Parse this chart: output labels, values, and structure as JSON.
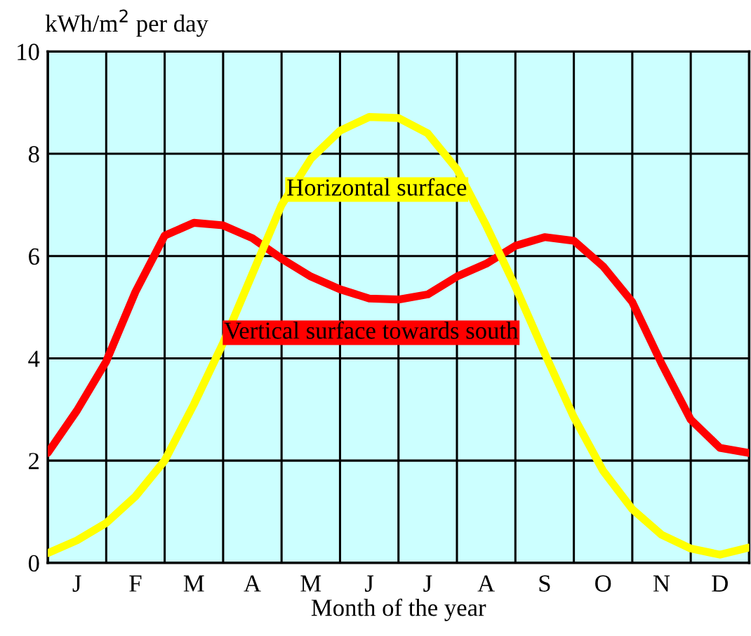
{
  "chart_data": {
    "type": "line",
    "xlabel": "Month of the year",
    "ylabel": "kWh/m$^{2}$ per day",
    "ylim": [
      0,
      10
    ],
    "yticks": [
      0,
      2,
      4,
      6,
      8,
      10
    ],
    "categories": [
      null,
      "J",
      null,
      "F",
      null,
      "M",
      null,
      "A",
      null,
      "M",
      null,
      "J",
      null,
      "J",
      null,
      "A",
      null,
      "S",
      null,
      "O",
      null,
      "N",
      null,
      "D",
      null
    ],
    "grid": true,
    "legend": false,
    "marker": "none",
    "line_style": "solid",
    "series": [
      {
        "name": "Vertical surface towards south",
        "color": "#ff0000",
        "values": [
          2.15,
          2.98,
          3.94,
          5.3,
          6.4,
          6.65,
          6.6,
          6.35,
          5.95,
          5.6,
          5.35,
          5.17,
          5.15,
          5.25,
          5.6,
          5.85,
          6.2,
          6.37,
          6.3,
          5.8,
          5.1,
          3.9,
          2.8,
          2.25,
          2.15
        ]
      },
      {
        "name": "Horizontal surface",
        "color": "#ffff00",
        "values": [
          0.19,
          0.44,
          0.78,
          1.3,
          2.0,
          3.1,
          4.3,
          5.65,
          7.0,
          7.9,
          8.45,
          8.72,
          8.7,
          8.4,
          7.7,
          6.6,
          5.4,
          4.1,
          2.85,
          1.8,
          1.05,
          0.55,
          0.28,
          0.16,
          0.3
        ]
      }
    ]
  }
}
